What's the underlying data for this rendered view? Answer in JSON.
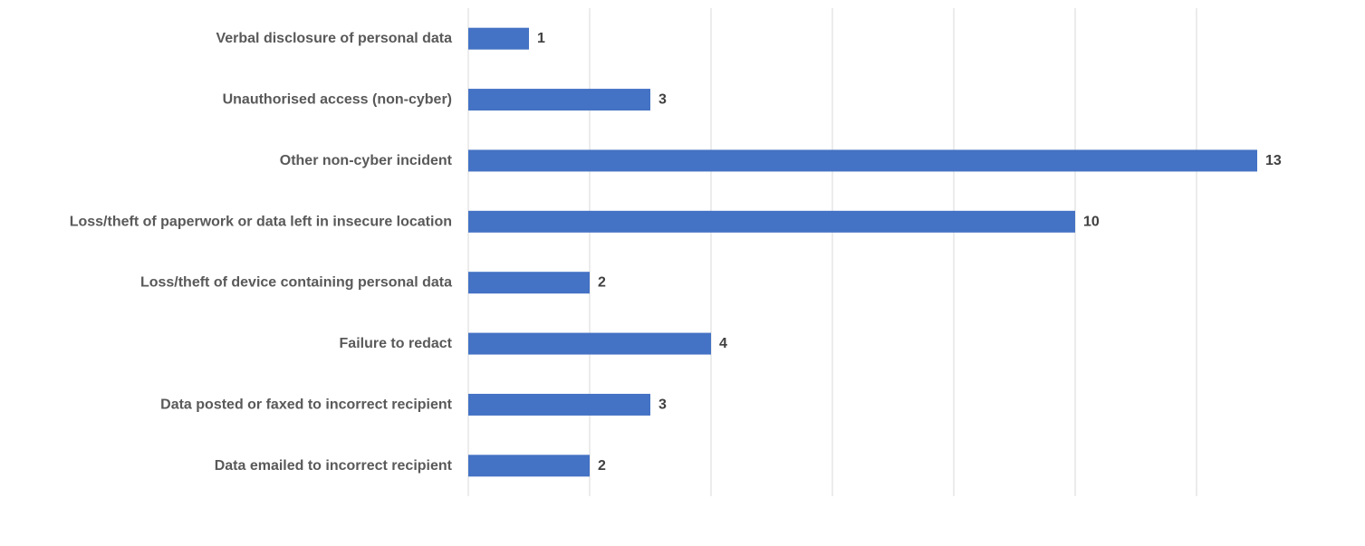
{
  "chart_data": {
    "type": "bar",
    "orientation": "horizontal",
    "title": "",
    "xlabel": "",
    "ylabel": "",
    "categories": [
      "Verbal disclosure of personal data",
      "Unauthorised access (non-cyber)",
      "Other non-cyber incident",
      "Loss/theft of paperwork or data left in insecure location",
      "Loss/theft of device containing personal data",
      "Failure to redact",
      "Data posted or faxed to incorrect recipient",
      "Data emailed to incorrect recipient"
    ],
    "values": [
      1,
      3,
      13,
      10,
      2,
      4,
      3,
      2
    ],
    "xlim": [
      0,
      14
    ],
    "grid": "vertical gridlines",
    "legend": "none",
    "data_labels": true,
    "bar_color": "#4472C4",
    "grid_color": "#D9D9D9"
  }
}
